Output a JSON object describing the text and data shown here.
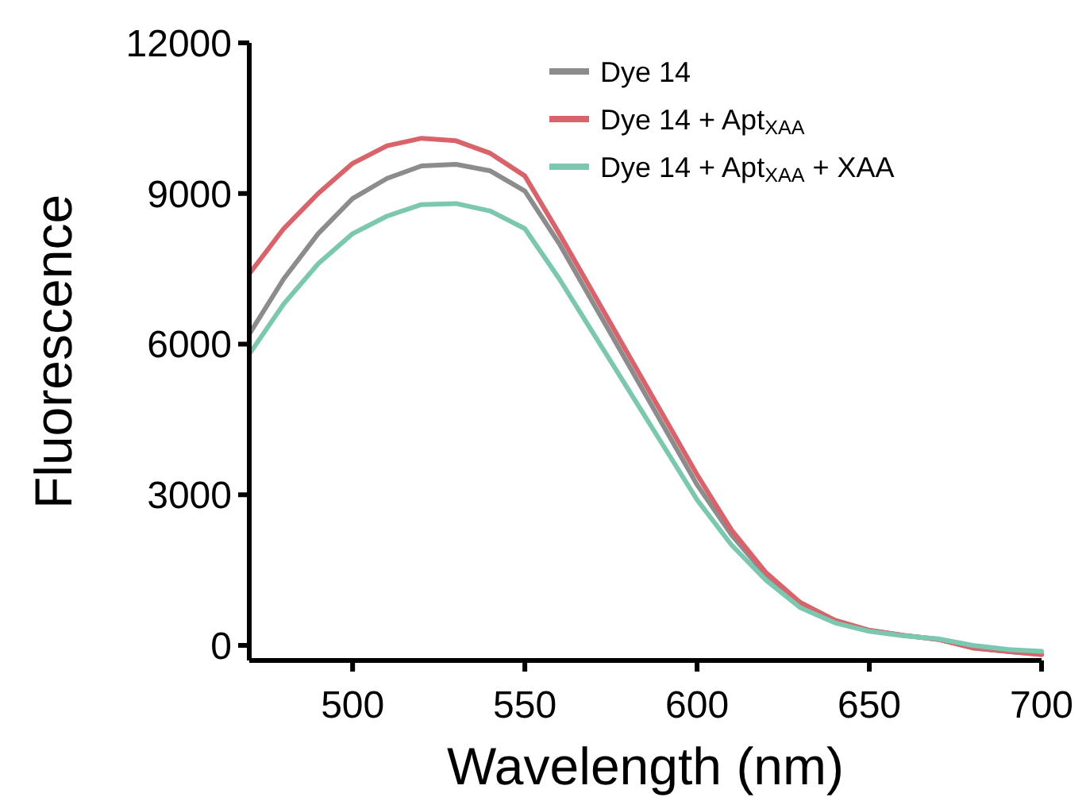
{
  "chart_data": {
    "type": "line",
    "xlabel": "Wavelength (nm)",
    "ylabel": "Fluorescence",
    "x": [
      470,
      480,
      490,
      500,
      510,
      520,
      530,
      540,
      550,
      560,
      570,
      580,
      590,
      600,
      610,
      620,
      630,
      640,
      650,
      660,
      670,
      680,
      690,
      700
    ],
    "xlim": [
      470,
      700
    ],
    "xticks": [
      500,
      550,
      600,
      650,
      700
    ],
    "ylim": [
      -300,
      12000
    ],
    "yticks": [
      0,
      3000,
      6000,
      9000,
      12000
    ],
    "grid": false,
    "legend": "top right",
    "marker": "none",
    "line_style": "solid",
    "series": [
      {
        "name": "Dye 14",
        "color": "#8c8c8c",
        "values": [
          6200,
          7300,
          8200,
          8900,
          9300,
          9550,
          9580,
          9450,
          9050,
          8000,
          6800,
          5600,
          4400,
          3200,
          2200,
          1400,
          850,
          500,
          300,
          200,
          120,
          -50,
          -120,
          -180
        ]
      },
      {
        "name": "Dye 14 + Apt$_{XAA}$",
        "color": "#d9636b",
        "values": [
          7400,
          8300,
          9000,
          9600,
          9950,
          10100,
          10050,
          9800,
          9350,
          8200,
          7000,
          5800,
          4600,
          3400,
          2300,
          1450,
          850,
          500,
          300,
          200,
          120,
          -50,
          -120,
          -180
        ]
      },
      {
        "name": "Dye 14 + Apt$_{XAA}$ + XAA",
        "color": "#7cc7b0",
        "values": [
          5800,
          6800,
          7600,
          8200,
          8550,
          8780,
          8800,
          8650,
          8300,
          7300,
          6200,
          5100,
          4000,
          2900,
          2000,
          1300,
          750,
          450,
          280,
          190,
          130,
          0,
          -80,
          -120
        ]
      }
    ]
  }
}
